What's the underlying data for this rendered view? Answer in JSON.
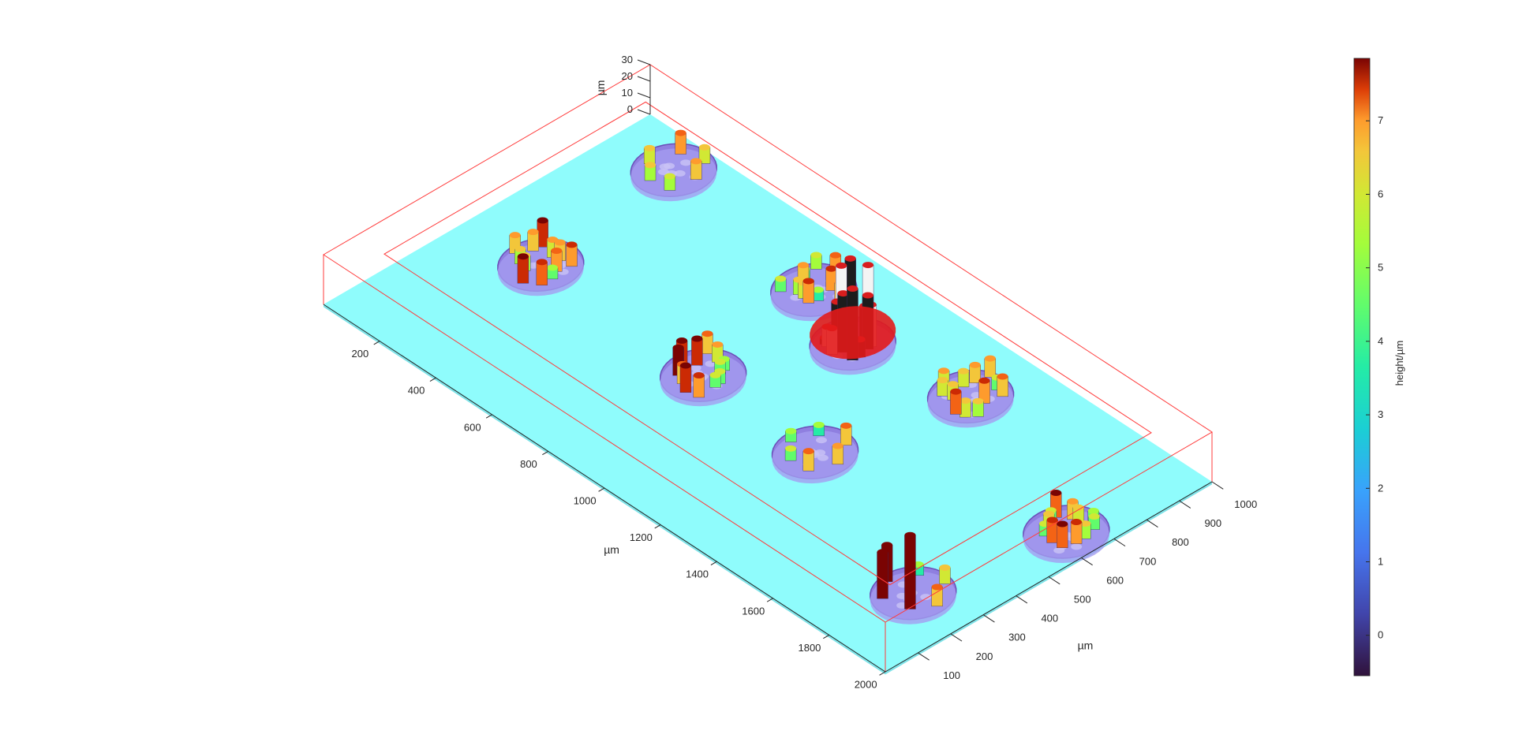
{
  "chart_data": {
    "type": "surface",
    "title": "",
    "xlabel": "µm",
    "ylabel": "µm",
    "zlabel": "µm",
    "xlim": [
      0,
      2000
    ],
    "ylim": [
      0,
      1000
    ],
    "zlim": [
      -5,
      30
    ],
    "x_ticks": [
      "200",
      "400",
      "600",
      "800",
      "1000",
      "1200",
      "1400",
      "1600",
      "1800",
      "2000"
    ],
    "y_ticks": [
      "100",
      "200",
      "300",
      "400",
      "500",
      "600",
      "700",
      "800",
      "900",
      "1000"
    ],
    "z_ticks": [
      "0",
      "10",
      "20",
      "30"
    ],
    "substrate_color": "#8ffcfc",
    "box_color": "#ff3b3b",
    "wells": [
      {
        "x": 200,
        "y": 900,
        "features": "sparse",
        "peak": 6.0
      },
      {
        "x": 250,
        "y": 450,
        "features": "dense",
        "peak": 7.5
      },
      {
        "x": 780,
        "y": 830,
        "features": "dense",
        "peak": 6.8
      },
      {
        "x": 840,
        "y": 440,
        "features": "dense",
        "peak": 7.8
      },
      {
        "x": 1000,
        "y": 760,
        "features": "saturated",
        "peak": 30
      },
      {
        "x": 1350,
        "y": 820,
        "features": "dense",
        "peak": 6.5
      },
      {
        "x": 1250,
        "y": 430,
        "features": "sparse",
        "peak": 6.6
      },
      {
        "x": 1900,
        "y": 640,
        "features": "dense",
        "peak": 7.0
      },
      {
        "x": 1820,
        "y": 240,
        "features": "sparse",
        "peak": 25
      }
    ],
    "colorbar": {
      "label": "height/µm",
      "ticks": [
        "0",
        "1",
        "2",
        "3",
        "4",
        "5",
        "6",
        "7"
      ],
      "range": [
        -0.55,
        7.85
      ],
      "colormap": "turbo"
    }
  }
}
